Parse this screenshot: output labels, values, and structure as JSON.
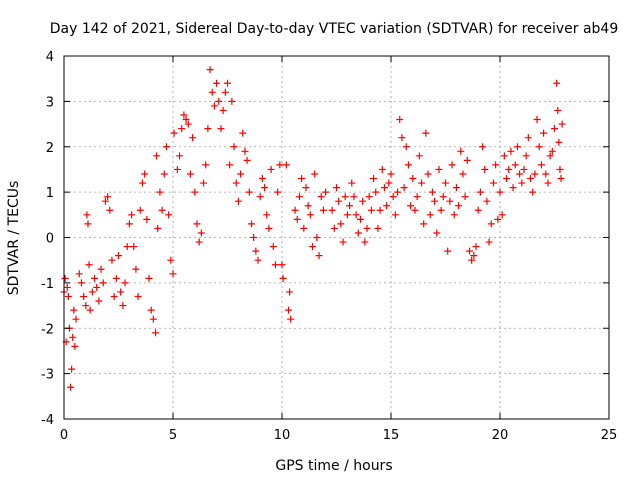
{
  "chart_data": {
    "type": "scatter",
    "title": "Day 142 of 2021, Sidereal Day-to-day VTEC variation (SDTVAR) for receiver ab49",
    "xlabel": "GPS time / hours",
    "ylabel": "SDTVAR / TECUs",
    "xlim": [
      0,
      25
    ],
    "ylim": [
      -4,
      4
    ],
    "xticks": [
      "0",
      "5",
      "10",
      "15",
      "20",
      "25"
    ],
    "yticks": [
      "-4",
      "-3",
      "-2",
      "-1",
      "0",
      "1",
      "2",
      "3",
      "4"
    ],
    "grid": true,
    "marker": "+",
    "color": "#ff0000",
    "series": [
      {
        "name": "SDTVAR",
        "points": [
          [
            0.0,
            -1.2
          ],
          [
            0.05,
            -0.9
          ],
          [
            0.1,
            -2.3
          ],
          [
            0.15,
            -1.1
          ],
          [
            0.2,
            -1.3
          ],
          [
            0.25,
            -2.0
          ],
          [
            0.3,
            -3.3
          ],
          [
            0.35,
            -2.9
          ],
          [
            0.4,
            -2.2
          ],
          [
            0.45,
            -1.6
          ],
          [
            0.5,
            -2.4
          ],
          [
            0.55,
            -1.8
          ],
          [
            0.7,
            -0.8
          ],
          [
            0.8,
            -1.0
          ],
          [
            0.9,
            -1.3
          ],
          [
            1.0,
            -1.5
          ],
          [
            1.05,
            0.5
          ],
          [
            1.1,
            0.3
          ],
          [
            1.15,
            -0.6
          ],
          [
            1.2,
            -1.6
          ],
          [
            1.3,
            -1.2
          ],
          [
            1.4,
            -0.9
          ],
          [
            1.5,
            -1.1
          ],
          [
            1.6,
            -1.4
          ],
          [
            1.7,
            -0.7
          ],
          [
            1.8,
            -1.0
          ],
          [
            1.9,
            0.8
          ],
          [
            2.0,
            0.9
          ],
          [
            2.1,
            0.6
          ],
          [
            2.2,
            -0.5
          ],
          [
            2.3,
            -1.3
          ],
          [
            2.4,
            -0.9
          ],
          [
            2.5,
            -0.4
          ],
          [
            2.6,
            -1.2
          ],
          [
            2.7,
            -1.5
          ],
          [
            2.8,
            -1.0
          ],
          [
            2.9,
            -0.2
          ],
          [
            3.0,
            0.3
          ],
          [
            3.1,
            0.5
          ],
          [
            3.2,
            -0.2
          ],
          [
            3.3,
            -0.7
          ],
          [
            3.4,
            -1.3
          ],
          [
            3.5,
            0.6
          ],
          [
            3.6,
            1.2
          ],
          [
            3.7,
            1.4
          ],
          [
            3.8,
            0.4
          ],
          [
            3.9,
            -0.9
          ],
          [
            4.0,
            -1.6
          ],
          [
            4.1,
            -1.8
          ],
          [
            4.2,
            -2.1
          ],
          [
            4.25,
            1.8
          ],
          [
            4.3,
            0.2
          ],
          [
            4.4,
            1.0
          ],
          [
            4.5,
            0.6
          ],
          [
            4.6,
            1.4
          ],
          [
            4.7,
            2.0
          ],
          [
            4.8,
            0.5
          ],
          [
            4.9,
            -0.5
          ],
          [
            5.0,
            -0.8
          ],
          [
            5.05,
            2.3
          ],
          [
            5.2,
            1.5
          ],
          [
            5.3,
            1.8
          ],
          [
            5.4,
            2.4
          ],
          [
            5.5,
            2.7
          ],
          [
            5.6,
            2.6
          ],
          [
            5.7,
            2.5
          ],
          [
            5.8,
            1.4
          ],
          [
            5.9,
            2.2
          ],
          [
            6.0,
            1.0
          ],
          [
            6.1,
            0.3
          ],
          [
            6.2,
            -0.1
          ],
          [
            6.3,
            0.1
          ],
          [
            6.4,
            1.2
          ],
          [
            6.5,
            1.6
          ],
          [
            6.6,
            2.4
          ],
          [
            6.7,
            3.7
          ],
          [
            6.8,
            3.2
          ],
          [
            6.9,
            2.9
          ],
          [
            7.0,
            3.4
          ],
          [
            7.1,
            3.0
          ],
          [
            7.2,
            2.4
          ],
          [
            7.3,
            2.8
          ],
          [
            7.4,
            3.2
          ],
          [
            7.5,
            3.4
          ],
          [
            7.6,
            1.6
          ],
          [
            7.7,
            3.0
          ],
          [
            7.8,
            2.0
          ],
          [
            7.9,
            1.2
          ],
          [
            8.0,
            0.8
          ],
          [
            8.1,
            1.4
          ],
          [
            8.2,
            2.3
          ],
          [
            8.3,
            1.9
          ],
          [
            8.4,
            1.7
          ],
          [
            8.5,
            1.0
          ],
          [
            8.6,
            0.3
          ],
          [
            8.7,
            0.0
          ],
          [
            8.8,
            -0.3
          ],
          [
            8.9,
            -0.5
          ],
          [
            9.0,
            0.9
          ],
          [
            9.1,
            1.3
          ],
          [
            9.2,
            1.1
          ],
          [
            9.3,
            0.5
          ],
          [
            9.4,
            0.2
          ],
          [
            9.5,
            1.5
          ],
          [
            9.6,
            -0.2
          ],
          [
            9.7,
            -0.6
          ],
          [
            9.8,
            1.0
          ],
          [
            9.9,
            1.6
          ],
          [
            10.0,
            -0.6
          ],
          [
            10.05,
            -0.9
          ],
          [
            10.2,
            1.6
          ],
          [
            10.3,
            -1.6
          ],
          [
            10.35,
            -1.2
          ],
          [
            10.4,
            -1.8
          ],
          [
            10.6,
            0.6
          ],
          [
            10.7,
            0.4
          ],
          [
            10.8,
            0.9
          ],
          [
            10.9,
            1.3
          ],
          [
            11.0,
            0.2
          ],
          [
            11.1,
            1.1
          ],
          [
            11.2,
            0.7
          ],
          [
            11.3,
            0.5
          ],
          [
            11.4,
            -0.2
          ],
          [
            11.5,
            1.4
          ],
          [
            11.6,
            0.0
          ],
          [
            11.7,
            -0.4
          ],
          [
            11.8,
            0.9
          ],
          [
            11.9,
            0.6
          ],
          [
            12.0,
            1.0
          ],
          [
            12.3,
            0.6
          ],
          [
            12.4,
            0.2
          ],
          [
            12.5,
            1.1
          ],
          [
            12.6,
            0.8
          ],
          [
            12.7,
            0.3
          ],
          [
            12.8,
            -0.1
          ],
          [
            12.9,
            0.9
          ],
          [
            13.0,
            0.5
          ],
          [
            13.1,
            0.7
          ],
          [
            13.2,
            1.2
          ],
          [
            13.3,
            0.9
          ],
          [
            13.4,
            0.5
          ],
          [
            13.5,
            0.1
          ],
          [
            13.6,
            0.4
          ],
          [
            13.7,
            0.8
          ],
          [
            13.8,
            -0.1
          ],
          [
            13.9,
            0.2
          ],
          [
            14.0,
            0.9
          ],
          [
            14.1,
            0.6
          ],
          [
            14.2,
            1.3
          ],
          [
            14.3,
            1.0
          ],
          [
            14.4,
            0.2
          ],
          [
            14.5,
            0.6
          ],
          [
            14.6,
            1.5
          ],
          [
            14.7,
            1.1
          ],
          [
            14.8,
            0.7
          ],
          [
            14.9,
            1.2
          ],
          [
            15.0,
            1.4
          ],
          [
            15.1,
            0.9
          ],
          [
            15.2,
            0.5
          ],
          [
            15.3,
            1.0
          ],
          [
            15.4,
            2.6
          ],
          [
            15.5,
            2.2
          ],
          [
            15.6,
            1.1
          ],
          [
            15.7,
            2.0
          ],
          [
            15.8,
            1.6
          ],
          [
            15.9,
            0.7
          ],
          [
            16.0,
            1.3
          ],
          [
            16.1,
            0.6
          ],
          [
            16.2,
            0.9
          ],
          [
            16.3,
            1.8
          ],
          [
            16.4,
            1.2
          ],
          [
            16.5,
            0.3
          ],
          [
            16.6,
            2.3
          ],
          [
            16.7,
            1.4
          ],
          [
            16.8,
            0.5
          ],
          [
            16.9,
            1.0
          ],
          [
            17.0,
            0.8
          ],
          [
            17.1,
            0.1
          ],
          [
            17.2,
            1.5
          ],
          [
            17.3,
            0.6
          ],
          [
            17.4,
            0.9
          ],
          [
            17.5,
            1.2
          ],
          [
            17.6,
            -0.3
          ],
          [
            17.7,
            0.8
          ],
          [
            17.8,
            1.6
          ],
          [
            17.9,
            0.5
          ],
          [
            18.0,
            1.1
          ],
          [
            18.1,
            0.7
          ],
          [
            18.2,
            1.9
          ],
          [
            18.3,
            1.4
          ],
          [
            18.4,
            0.9
          ],
          [
            18.5,
            1.7
          ],
          [
            18.6,
            -0.3
          ],
          [
            18.7,
            -0.5
          ],
          [
            18.8,
            -0.4
          ],
          [
            18.9,
            -0.2
          ],
          [
            19.0,
            0.6
          ],
          [
            19.1,
            1.0
          ],
          [
            19.2,
            2.0
          ],
          [
            19.3,
            1.5
          ],
          [
            19.4,
            0.8
          ],
          [
            19.5,
            -0.1
          ],
          [
            19.6,
            0.3
          ],
          [
            19.7,
            1.2
          ],
          [
            19.8,
            1.6
          ],
          [
            19.9,
            0.4
          ],
          [
            20.0,
            1.0
          ],
          [
            20.1,
            0.5
          ],
          [
            20.2,
            1.8
          ],
          [
            20.3,
            1.3
          ],
          [
            20.4,
            1.5
          ],
          [
            20.5,
            1.9
          ],
          [
            20.6,
            1.1
          ],
          [
            20.7,
            1.6
          ],
          [
            20.8,
            2.0
          ],
          [
            20.9,
            1.4
          ],
          [
            21.0,
            1.2
          ],
          [
            21.1,
            1.5
          ],
          [
            21.2,
            1.8
          ],
          [
            21.3,
            2.2
          ],
          [
            21.4,
            1.3
          ],
          [
            21.5,
            1.0
          ],
          [
            21.6,
            1.4
          ],
          [
            21.7,
            2.6
          ],
          [
            21.8,
            2.0
          ],
          [
            21.9,
            1.6
          ],
          [
            22.0,
            2.3
          ],
          [
            22.1,
            1.4
          ],
          [
            22.2,
            1.2
          ],
          [
            22.3,
            1.8
          ],
          [
            22.4,
            1.9
          ],
          [
            22.5,
            2.4
          ],
          [
            22.6,
            3.4
          ],
          [
            22.65,
            2.8
          ],
          [
            22.7,
            2.1
          ],
          [
            22.75,
            1.5
          ],
          [
            22.8,
            1.3
          ],
          [
            22.85,
            2.5
          ]
        ]
      }
    ]
  }
}
